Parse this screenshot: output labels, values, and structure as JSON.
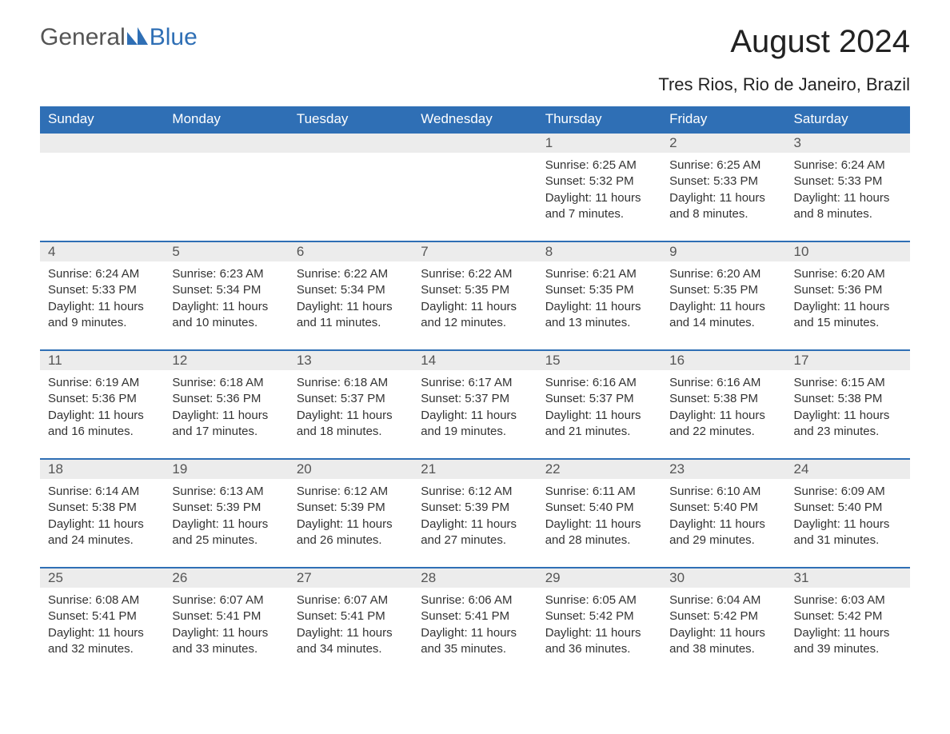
{
  "logo": {
    "general": "General",
    "blue": "Blue"
  },
  "title": "August 2024",
  "location": "Tres Rios, Rio de Janeiro, Brazil",
  "colors": {
    "header_bg": "#2f6fb5",
    "header_text": "#ffffff",
    "daynum_bg": "#ececec",
    "row_border": "#2f6fb5",
    "body_text": "#333333"
  },
  "day_headers": [
    "Sunday",
    "Monday",
    "Tuesday",
    "Wednesday",
    "Thursday",
    "Friday",
    "Saturday"
  ],
  "labels": {
    "sunrise": "Sunrise: ",
    "sunset": "Sunset: ",
    "daylight": "Daylight: "
  },
  "weeks": [
    [
      null,
      null,
      null,
      null,
      {
        "n": "1",
        "sr": "6:25 AM",
        "ss": "5:32 PM",
        "dl": "11 hours and 7 minutes."
      },
      {
        "n": "2",
        "sr": "6:25 AM",
        "ss": "5:33 PM",
        "dl": "11 hours and 8 minutes."
      },
      {
        "n": "3",
        "sr": "6:24 AM",
        "ss": "5:33 PM",
        "dl": "11 hours and 8 minutes."
      }
    ],
    [
      {
        "n": "4",
        "sr": "6:24 AM",
        "ss": "5:33 PM",
        "dl": "11 hours and 9 minutes."
      },
      {
        "n": "5",
        "sr": "6:23 AM",
        "ss": "5:34 PM",
        "dl": "11 hours and 10 minutes."
      },
      {
        "n": "6",
        "sr": "6:22 AM",
        "ss": "5:34 PM",
        "dl": "11 hours and 11 minutes."
      },
      {
        "n": "7",
        "sr": "6:22 AM",
        "ss": "5:35 PM",
        "dl": "11 hours and 12 minutes."
      },
      {
        "n": "8",
        "sr": "6:21 AM",
        "ss": "5:35 PM",
        "dl": "11 hours and 13 minutes."
      },
      {
        "n": "9",
        "sr": "6:20 AM",
        "ss": "5:35 PM",
        "dl": "11 hours and 14 minutes."
      },
      {
        "n": "10",
        "sr": "6:20 AM",
        "ss": "5:36 PM",
        "dl": "11 hours and 15 minutes."
      }
    ],
    [
      {
        "n": "11",
        "sr": "6:19 AM",
        "ss": "5:36 PM",
        "dl": "11 hours and 16 minutes."
      },
      {
        "n": "12",
        "sr": "6:18 AM",
        "ss": "5:36 PM",
        "dl": "11 hours and 17 minutes."
      },
      {
        "n": "13",
        "sr": "6:18 AM",
        "ss": "5:37 PM",
        "dl": "11 hours and 18 minutes."
      },
      {
        "n": "14",
        "sr": "6:17 AM",
        "ss": "5:37 PM",
        "dl": "11 hours and 19 minutes."
      },
      {
        "n": "15",
        "sr": "6:16 AM",
        "ss": "5:37 PM",
        "dl": "11 hours and 21 minutes."
      },
      {
        "n": "16",
        "sr": "6:16 AM",
        "ss": "5:38 PM",
        "dl": "11 hours and 22 minutes."
      },
      {
        "n": "17",
        "sr": "6:15 AM",
        "ss": "5:38 PM",
        "dl": "11 hours and 23 minutes."
      }
    ],
    [
      {
        "n": "18",
        "sr": "6:14 AM",
        "ss": "5:38 PM",
        "dl": "11 hours and 24 minutes."
      },
      {
        "n": "19",
        "sr": "6:13 AM",
        "ss": "5:39 PM",
        "dl": "11 hours and 25 minutes."
      },
      {
        "n": "20",
        "sr": "6:12 AM",
        "ss": "5:39 PM",
        "dl": "11 hours and 26 minutes."
      },
      {
        "n": "21",
        "sr": "6:12 AM",
        "ss": "5:39 PM",
        "dl": "11 hours and 27 minutes."
      },
      {
        "n": "22",
        "sr": "6:11 AM",
        "ss": "5:40 PM",
        "dl": "11 hours and 28 minutes."
      },
      {
        "n": "23",
        "sr": "6:10 AM",
        "ss": "5:40 PM",
        "dl": "11 hours and 29 minutes."
      },
      {
        "n": "24",
        "sr": "6:09 AM",
        "ss": "5:40 PM",
        "dl": "11 hours and 31 minutes."
      }
    ],
    [
      {
        "n": "25",
        "sr": "6:08 AM",
        "ss": "5:41 PM",
        "dl": "11 hours and 32 minutes."
      },
      {
        "n": "26",
        "sr": "6:07 AM",
        "ss": "5:41 PM",
        "dl": "11 hours and 33 minutes."
      },
      {
        "n": "27",
        "sr": "6:07 AM",
        "ss": "5:41 PM",
        "dl": "11 hours and 34 minutes."
      },
      {
        "n": "28",
        "sr": "6:06 AM",
        "ss": "5:41 PM",
        "dl": "11 hours and 35 minutes."
      },
      {
        "n": "29",
        "sr": "6:05 AM",
        "ss": "5:42 PM",
        "dl": "11 hours and 36 minutes."
      },
      {
        "n": "30",
        "sr": "6:04 AM",
        "ss": "5:42 PM",
        "dl": "11 hours and 38 minutes."
      },
      {
        "n": "31",
        "sr": "6:03 AM",
        "ss": "5:42 PM",
        "dl": "11 hours and 39 minutes."
      }
    ]
  ]
}
